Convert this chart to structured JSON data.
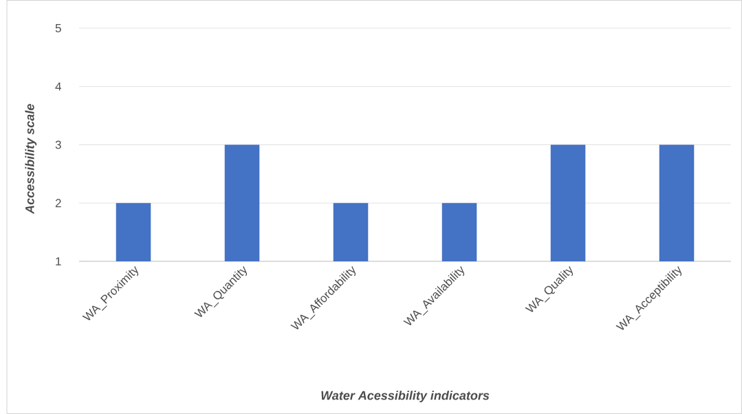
{
  "chart_data": {
    "type": "bar",
    "xlabel": "Water Acessibility indicators",
    "ylabel": "Accessibility scale",
    "categories": [
      "WA_Proximity",
      "WA_Quantity",
      "WA_Affordability",
      "WA_Availability",
      "WA_Quality",
      "WA_Acceptibility"
    ],
    "values": [
      2,
      3,
      2,
      2,
      3,
      3
    ],
    "color": "#4472c4",
    "ylim": [
      1,
      5
    ],
    "yticks": [
      1,
      2,
      3,
      4,
      5
    ],
    "grid": "y"
  }
}
